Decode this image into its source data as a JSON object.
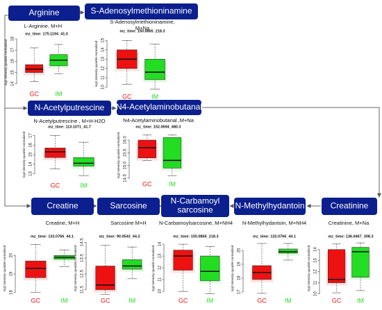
{
  "nodes": [
    {
      "label": [
        "Arginine"
      ],
      "sub": [
        "L-Arginine, M+H"
      ]
    },
    {
      "label": [
        "S-Adenosylmethioninamine"
      ],
      "sub": [
        "S-Adenosylmethioninamine,",
        "M+Na"
      ]
    },
    {
      "label": [
        "N-Acetylputrescine"
      ],
      "sub": [
        "N-Acetylputrescine , M+H-H2O"
      ]
    },
    {
      "label": [
        "N4-Acetylaminobutanal"
      ],
      "sub": [
        "N4-Acetylaminobutanal ,M+Na"
      ]
    },
    {
      "label": [
        "Creatine"
      ],
      "sub": [
        "Creatine, M+H"
      ]
    },
    {
      "label": [
        "Sarcosine"
      ],
      "sub": [
        "Sarcosine M+H"
      ]
    },
    {
      "label": [
        "N-Carbamoyl",
        "sarcosine"
      ],
      "sub": [
        "N-Carbamoylsarcosine, M+NH4"
      ]
    },
    {
      "label": [
        "N-Methylhydantoin"
      ],
      "sub": [
        "N-Methylhydantoin, M+NH4"
      ]
    },
    {
      "label": [
        "Creatinine"
      ],
      "sub": [
        "Creatinine, M+Na"
      ]
    }
  ],
  "plots": [
    {
      "mz": "mz_time: 175.1194_41.0",
      "ylabel": "log2 intensity quantile normalized",
      "ylim": [
        13.8,
        18
      ],
      "yticks": [
        14,
        15,
        16,
        17,
        18
      ],
      "groups": [
        {
          "name": "GC",
          "color": "#ee1111",
          "low": 14.2,
          "q1": 15.0,
          "median": 15.3,
          "q3": 15.7,
          "high": 17.2
        },
        {
          "name": "IM",
          "color": "#22dd22",
          "low": 14.9,
          "q1": 15.6,
          "median": 16.1,
          "q3": 16.6,
          "high": 17.5
        }
      ]
    },
    {
      "mz": "mz_time: 150.0865_218.3",
      "ylabel": "log2 intensity quantile normalized",
      "ylim": [
        9.6,
        15.4
      ],
      "yticks": [
        10,
        11,
        12,
        13,
        14,
        15
      ],
      "groups": [
        {
          "name": "GC",
          "color": "#ee1111",
          "low": 10.3,
          "q1": 12.0,
          "median": 13.0,
          "q3": 14.0,
          "high": 15.0
        },
        {
          "name": "IM",
          "color": "#22dd22",
          "low": 9.8,
          "q1": 10.8,
          "median": 11.6,
          "q3": 13.0,
          "high": 14.6
        }
      ]
    },
    {
      "mz": "mz_time: 113.1071_41.7",
      "ylabel": "log2 intensity quantile normalized",
      "ylim": [
        12.6,
        17.4
      ],
      "yticks": [
        13,
        14,
        15,
        16,
        17
      ],
      "groups": [
        {
          "name": "GC",
          "color": "#ee1111",
          "low": 13.5,
          "q1": 14.7,
          "median": 15.3,
          "q3": 15.7,
          "high": 17.0
        },
        {
          "name": "IM",
          "color": "#22dd22",
          "low": 12.8,
          "q1": 13.8,
          "median": 14.1,
          "q3": 14.7,
          "high": 16.3
        }
      ]
    },
    {
      "mz": "mz_time: 152.0694_480.3",
      "ylabel": "log2 intensity quantile normalized",
      "ylim": [
        14.5,
        16.3
      ],
      "yticks": [
        {
          "value": 14.5,
          "label": "14.5"
        },
        {
          "value": 15,
          "label": "15.0"
        },
        {
          "value": 15.5,
          "label": "15.5"
        },
        {
          "value": 16,
          "label": "16.0"
        }
      ],
      "groups": [
        {
          "name": "GC",
          "color": "#ee1111",
          "low": 15.2,
          "q1": 15.3,
          "median": 15.7,
          "q3": 16.0,
          "high": 16.2
        },
        {
          "name": "IM",
          "color": "#22dd22",
          "low": 14.6,
          "q1": 14.9,
          "median": 15.2,
          "q3": 16.1,
          "high": 16.2
        }
      ]
    },
    {
      "mz": "mz_time: 132.0766_44.1",
      "ylabel": "log2 intensity quantile normalized",
      "ylim": [
        17.8,
        20.8
      ],
      "yticks": [
        18,
        19,
        20
      ],
      "groups": [
        {
          "name": "GC",
          "color": "#ee1111",
          "low": 18.0,
          "q1": 18.8,
          "median": 19.3,
          "q3": 19.7,
          "high": 20.6
        },
        {
          "name": "IM",
          "color": "#22dd22",
          "low": 19.4,
          "q1": 19.8,
          "median": 19.9,
          "q3": 20.0,
          "high": 20.3
        }
      ]
    },
    {
      "mz": "mz_time: 90.0543_44.2",
      "ylabel": "log2 intensity quantile normalized",
      "ylim": [
        11.1,
        14.6
      ],
      "yticks": [
        11.5,
        12.5,
        13.5,
        14.5
      ],
      "groups": [
        {
          "name": "GC",
          "color": "#ee1111",
          "low": 11.2,
          "q1": 11.5,
          "median": 11.8,
          "q3": 13.0,
          "high": 14.3
        },
        {
          "name": "IM",
          "color": "#22dd22",
          "low": 12.2,
          "q1": 12.8,
          "median": 13.0,
          "q3": 13.4,
          "high": 14.2
        }
      ]
    },
    {
      "mz": "mz_time: 150.0865_218.3",
      "ylabel": "log2 intensity quantile normalized",
      "ylim": [
        9.6,
        14.3
      ],
      "yticks": [
        10,
        11,
        12,
        13,
        14
      ],
      "groups": [
        {
          "name": "GC",
          "color": "#ee1111",
          "low": 10.0,
          "q1": 11.8,
          "median": 13.0,
          "q3": 13.5,
          "high": 14.0
        },
        {
          "name": "IM",
          "color": "#22dd22",
          "low": 9.8,
          "q1": 10.9,
          "median": 11.7,
          "q3": 13.0,
          "high": 13.8
        }
      ]
    },
    {
      "mz": "mz_time: 132.0766_44.1",
      "ylabel": "log2 intensity quantile normalized",
      "ylim": [
        16.7,
        20.7
      ],
      "yticks": [
        17,
        18,
        19,
        20
      ],
      "groups": [
        {
          "name": "GC",
          "color": "#ee1111",
          "low": 16.9,
          "q1": 17.9,
          "median": 18.4,
          "q3": 18.9,
          "high": 20.5
        },
        {
          "name": "IM",
          "color": "#22dd22",
          "low": 19.3,
          "q1": 19.8,
          "median": 19.9,
          "q3": 20.1,
          "high": 20.5
        }
      ]
    },
    {
      "mz": "mz_time: 136.0467_308.3",
      "ylabel": "log2 intensity quantile normalized",
      "ylim": [
        9.8,
        14.8
      ],
      "yticks": [
        10,
        11,
        12,
        13,
        14
      ],
      "groups": [
        {
          "name": "GC",
          "color": "#ee1111",
          "low": 10.1,
          "q1": 11.0,
          "median": 11.3,
          "q3": 14.0,
          "high": 14.5
        },
        {
          "name": "IM",
          "color": "#22dd22",
          "low": 10.3,
          "q1": 11.5,
          "median": 13.8,
          "q3": 14.2,
          "high": 14.6
        }
      ]
    }
  ]
}
